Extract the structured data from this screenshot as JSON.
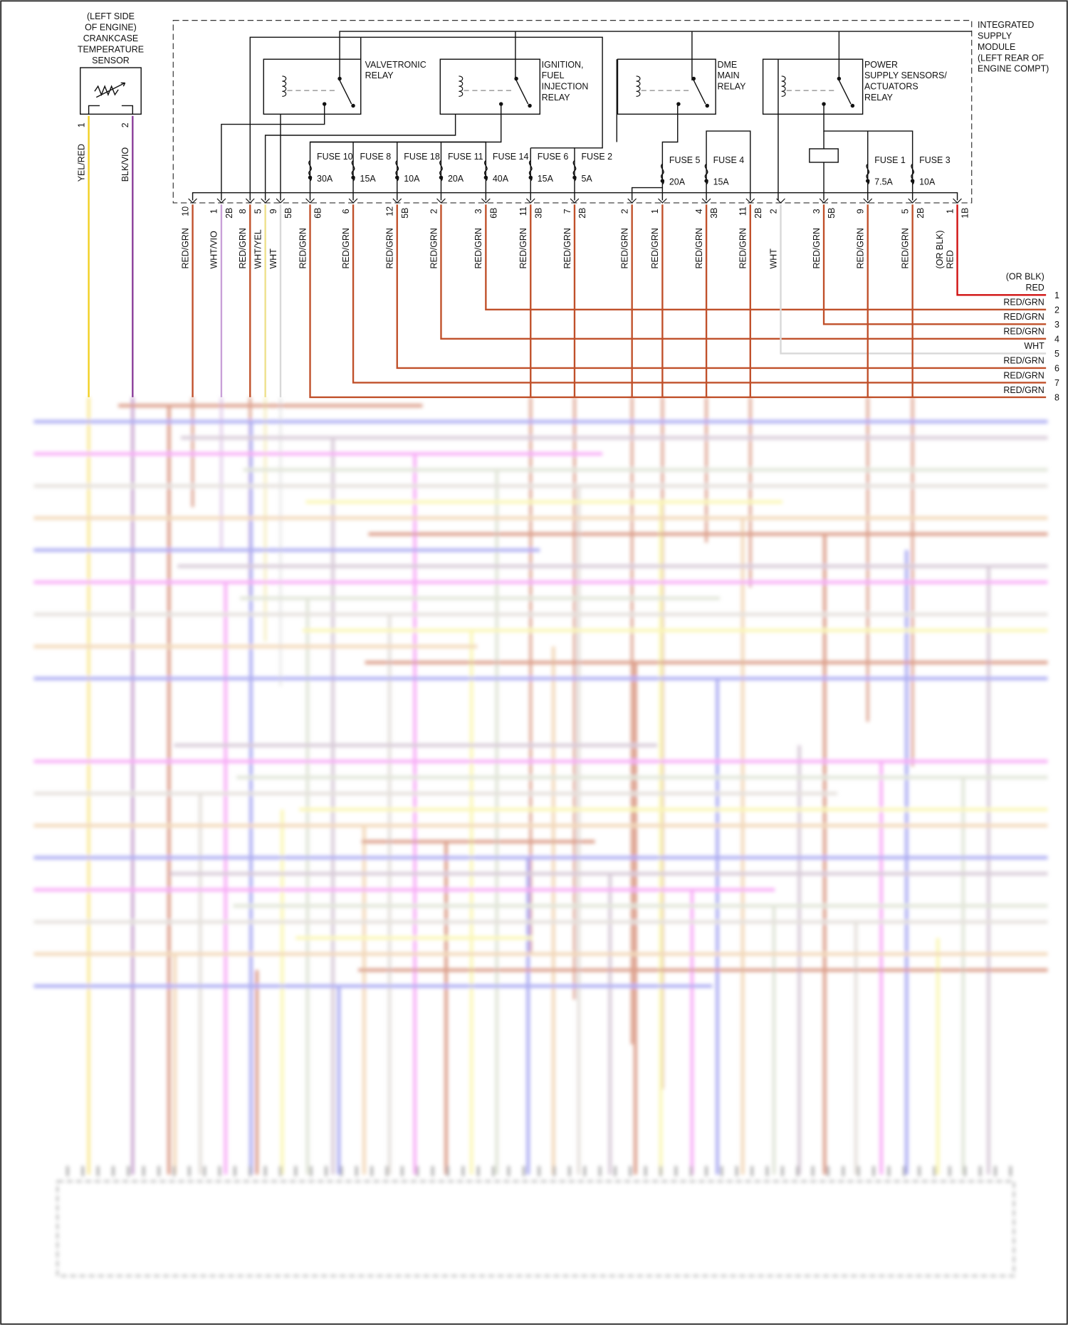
{
  "sensor": {
    "label_lines": [
      "(LEFT SIDE",
      "OF ENGINE)",
      "CRANKCASE",
      "TEMPERATURE",
      "SENSOR"
    ],
    "pins": [
      {
        "number": "1",
        "wire": "YEL/RED",
        "color": "#f2cf1f"
      },
      {
        "number": "2",
        "wire": "BLK/VIO",
        "color": "#8a3c9a"
      }
    ]
  },
  "module": {
    "label_lines": [
      "INTEGRATED",
      "SUPPLY",
      "MODULE",
      "(LEFT REAR OF",
      "ENGINE COMPT)"
    ]
  },
  "relays": [
    {
      "label_lines": [
        "VALVETRONIC",
        "RELAY"
      ]
    },
    {
      "label_lines": [
        "IGNITION,",
        "FUEL",
        "INJECTION",
        "RELAY"
      ]
    },
    {
      "label_lines": [
        "DME",
        "MAIN",
        "RELAY"
      ]
    },
    {
      "label_lines": [
        "POWER",
        "SUPPLY SENSORS/",
        "ACTUATORS",
        "RELAY"
      ]
    }
  ],
  "fuses": [
    {
      "name": "FUSE 10",
      "rating": "30A"
    },
    {
      "name": "FUSE 8",
      "rating": "15A"
    },
    {
      "name": "FUSE 18",
      "rating": "10A"
    },
    {
      "name": "FUSE 11",
      "rating": "20A"
    },
    {
      "name": "FUSE 14",
      "rating": "40A"
    },
    {
      "name": "FUSE 6",
      "rating": "15A"
    },
    {
      "name": "FUSE 2",
      "rating": "5A"
    },
    {
      "name": "FUSE 5",
      "rating": "20A"
    },
    {
      "name": "FUSE 4",
      "rating": "15A"
    },
    {
      "name": "FUSE 1",
      "rating": "7.5A"
    },
    {
      "name": "FUSE 3",
      "rating": "10A"
    }
  ],
  "terminals": [
    {
      "pin": "10",
      "wire": "RED/GRN",
      "color": "#c0502a"
    },
    {
      "pin": "1",
      "connector": "2B",
      "wire": "WHT/VIO",
      "color": "#c9a0d8"
    },
    {
      "pin": "8",
      "wire": "RED/GRN",
      "color": "#c0502a"
    },
    {
      "pin": "5",
      "wire": "WHT/YEL",
      "color": "#eee08a"
    },
    {
      "pin": "9",
      "connector": "5B",
      "wire": "WHT",
      "color": "#d8d8d8"
    },
    {
      "connector": "6B",
      "wire": "RED/GRN",
      "color": "#c0502a"
    },
    {
      "pin": "6",
      "wire": "RED/GRN",
      "color": "#c0502a"
    },
    {
      "pin": "12",
      "connector": "5B",
      "wire": "RED/GRN",
      "color": "#c0502a"
    },
    {
      "pin": "2",
      "wire": "RED/GRN",
      "color": "#c0502a"
    },
    {
      "pin": "3",
      "connector": "6B",
      "wire": "RED/GRN",
      "color": "#c0502a"
    },
    {
      "pin": "11",
      "connector": "3B",
      "wire": "RED/GRN",
      "color": "#c0502a"
    },
    {
      "pin": "7",
      "connector": "2B",
      "wire": "RED/GRN",
      "color": "#c0502a"
    },
    {
      "pin": "2",
      "wire": "RED/GRN",
      "color": "#c0502a"
    },
    {
      "pin": "1",
      "wire": "RED/GRN",
      "color": "#c0502a"
    },
    {
      "pin": "4",
      "connector": "3B",
      "wire": "RED/GRN",
      "color": "#c0502a"
    },
    {
      "pin": "11",
      "connector": "2B",
      "wire": "RED/GRN",
      "color": "#c0502a"
    },
    {
      "pin": "2",
      "wire": "WHT",
      "color": "#d8d8d8"
    },
    {
      "pin": "3",
      "connector": "5B",
      "wire": "RED/GRN",
      "color": "#c0502a"
    },
    {
      "pin": "9",
      "wire": "RED/GRN",
      "color": "#c0502a"
    },
    {
      "pin": "5",
      "connector": "2B",
      "wire": "RED/GRN",
      "color": "#c0502a"
    },
    {
      "pin": "1",
      "connector": "1B",
      "wire": "RED",
      "note": "(OR BLK)",
      "color": "#d01010"
    }
  ],
  "right_connector": [
    {
      "number": "1",
      "wire": "RED",
      "note": "(OR BLK)",
      "color": "#d01010"
    },
    {
      "number": "2",
      "wire": "RED/GRN",
      "color": "#c0502a"
    },
    {
      "number": "3",
      "wire": "RED/GRN",
      "color": "#c0502a"
    },
    {
      "number": "4",
      "wire": "RED/GRN",
      "color": "#c0502a"
    },
    {
      "number": "5",
      "wire": "WHT",
      "color": "#d8d8d8"
    },
    {
      "number": "6",
      "wire": "RED/GRN",
      "color": "#c0502a"
    },
    {
      "number": "7",
      "wire": "RED/GRN",
      "color": "#c0502a"
    },
    {
      "number": "8",
      "wire": "RED/GRN",
      "color": "#c0502a"
    }
  ]
}
